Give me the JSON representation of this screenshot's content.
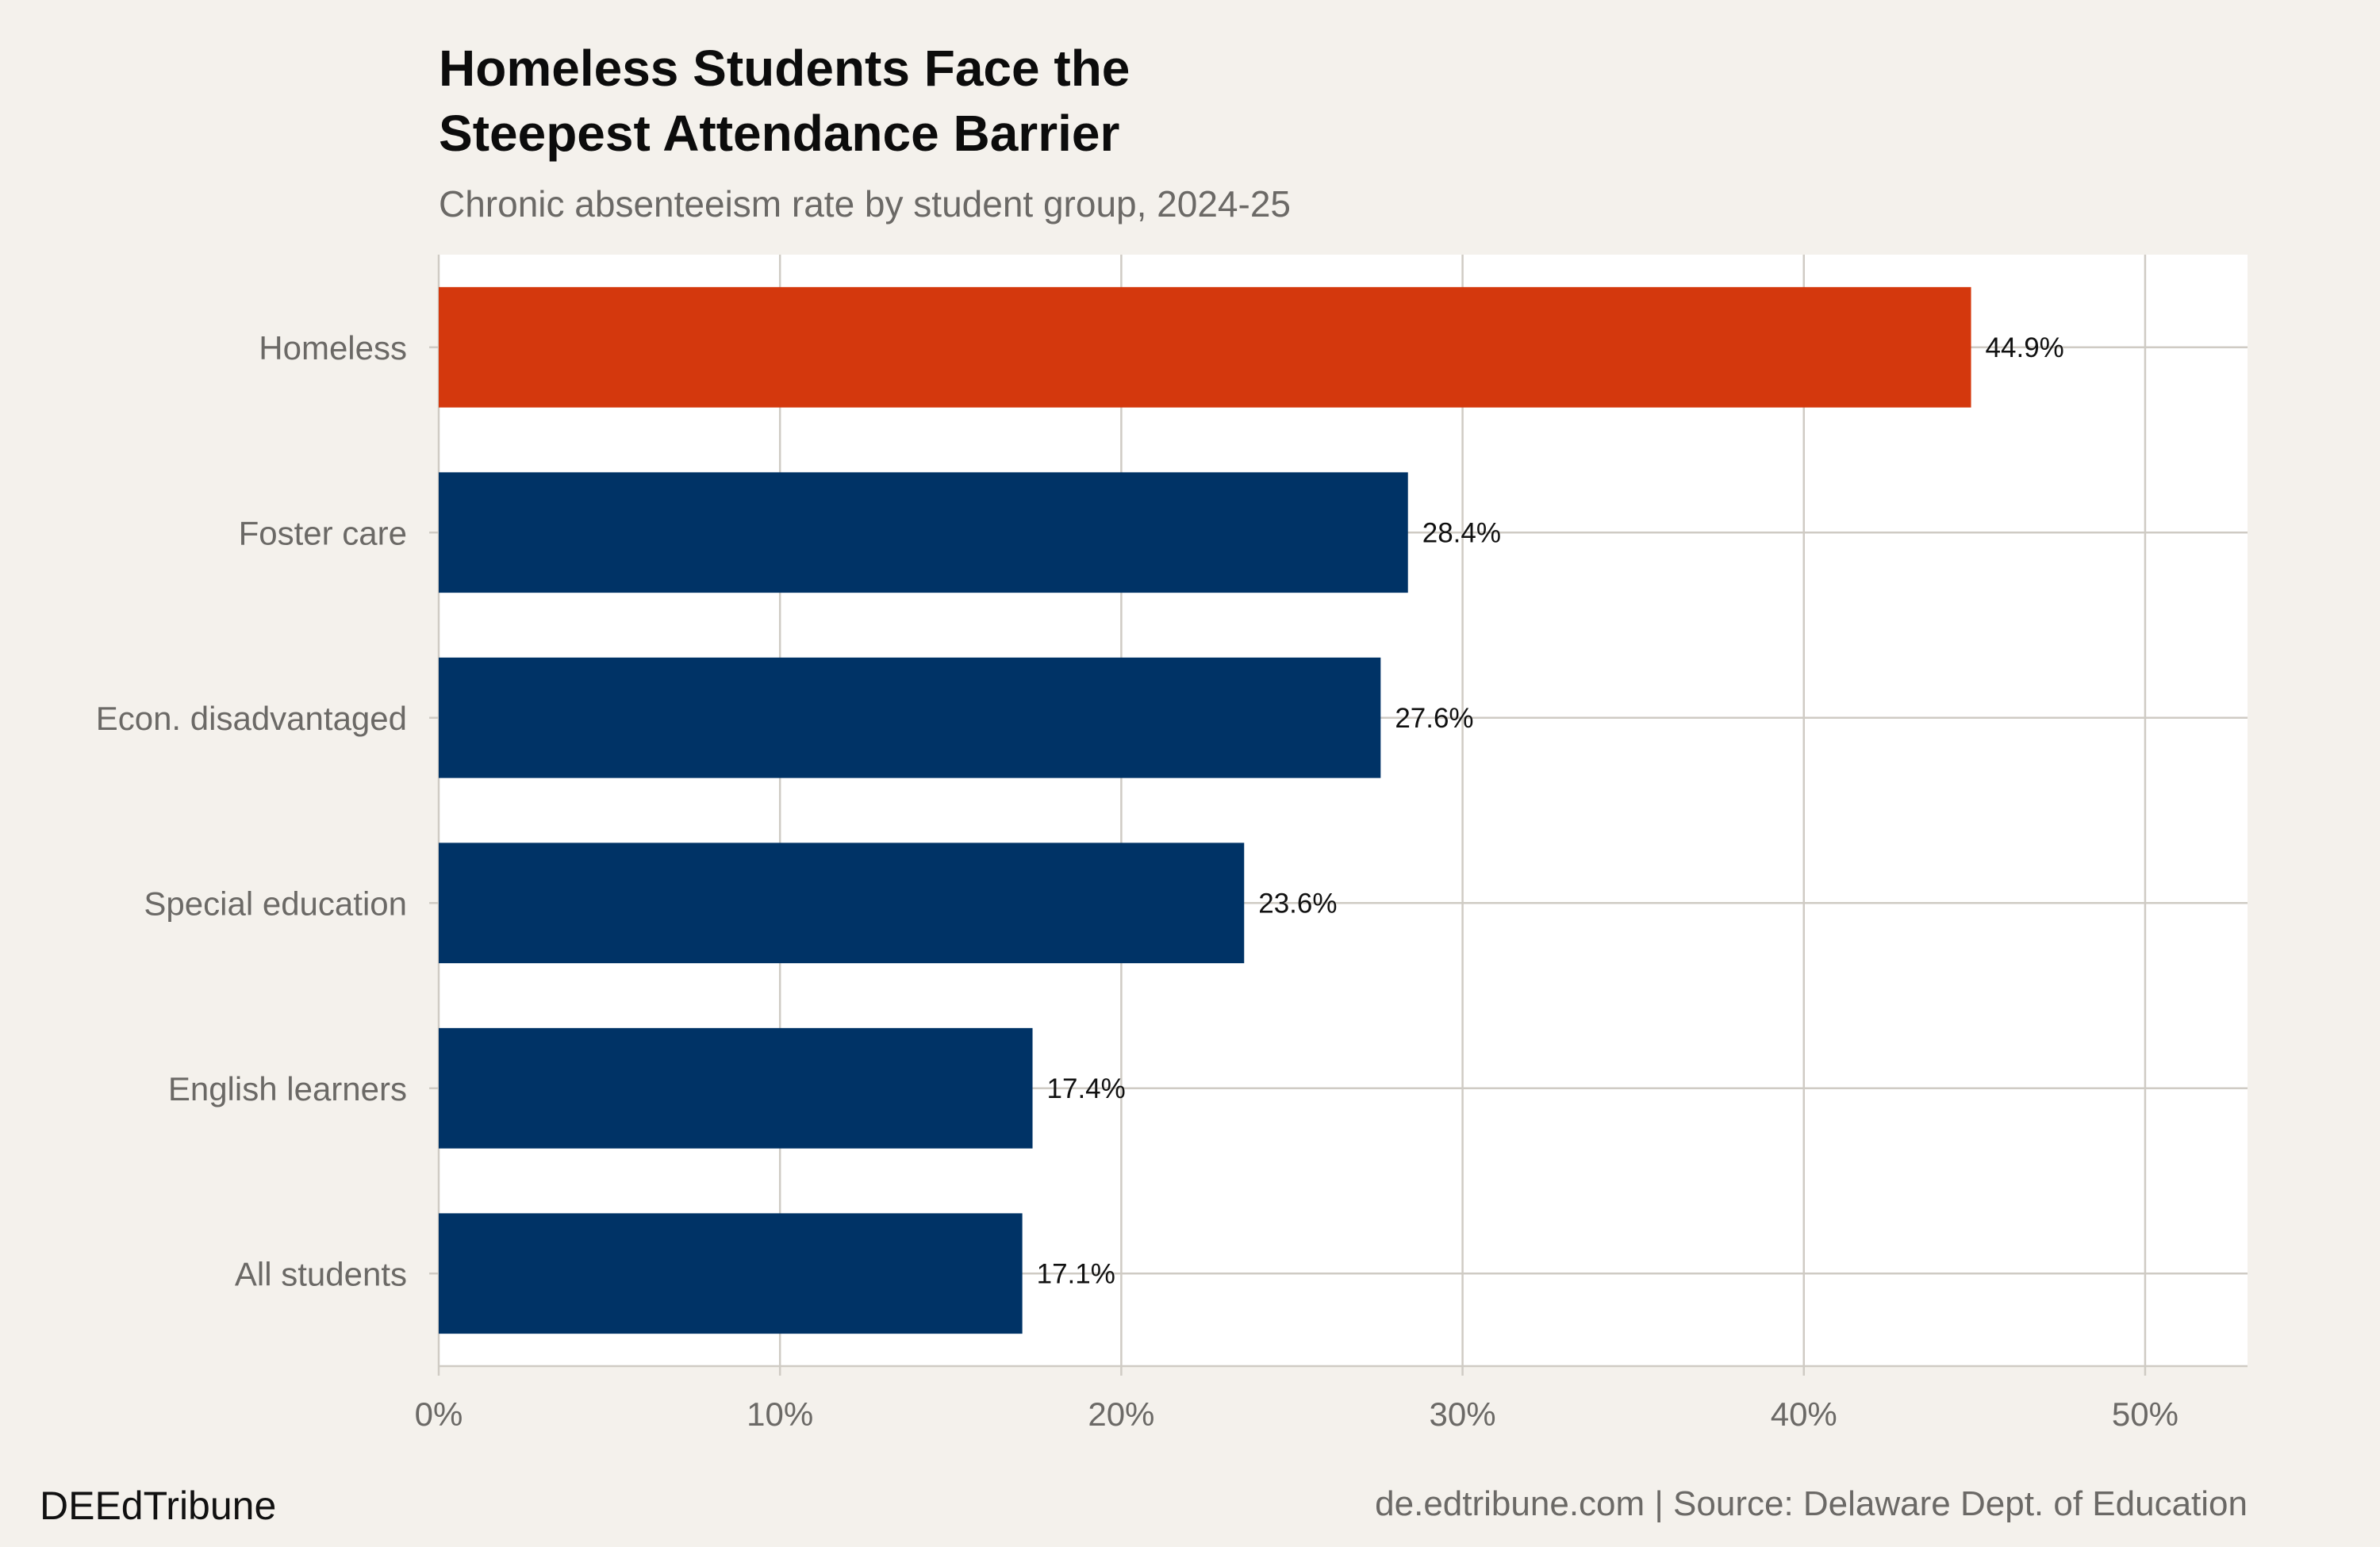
{
  "chart_data": {
    "type": "bar",
    "orientation": "horizontal",
    "title_lines": [
      "Homeless Students Face the",
      "Steepest Attendance Barrier"
    ],
    "subtitle": "Chronic absenteeism rate by student group, 2024-25",
    "categories": [
      "Homeless",
      "Foster care",
      "Econ. disadvantaged",
      "Special education",
      "English learners",
      "All students"
    ],
    "values": [
      44.9,
      28.4,
      27.6,
      23.6,
      17.4,
      17.1
    ],
    "value_labels": [
      "44.9%",
      "28.4%",
      "27.6%",
      "23.6%",
      "17.4%",
      "17.1%"
    ],
    "bar_colors": [
      "#d4380d",
      "#003366",
      "#003366",
      "#003366",
      "#003366",
      "#003366"
    ],
    "xlim": [
      0,
      53
    ],
    "x_ticks": [
      0,
      10,
      20,
      30,
      40,
      50
    ],
    "x_tick_labels": [
      "0%",
      "10%",
      "20%",
      "30%",
      "40%",
      "50%"
    ],
    "xlabel": "",
    "ylabel": "",
    "grid": true,
    "legend": "none"
  },
  "footer": {
    "brand": "DEEdTribune",
    "source": "de.edtribune.com | Source: Delaware Dept. of Education"
  },
  "colors": {
    "background": "#f4f1ec",
    "panel": "#ffffff",
    "grid": "#cfcbc4",
    "highlight": "#d4380d",
    "bar": "#003366"
  }
}
